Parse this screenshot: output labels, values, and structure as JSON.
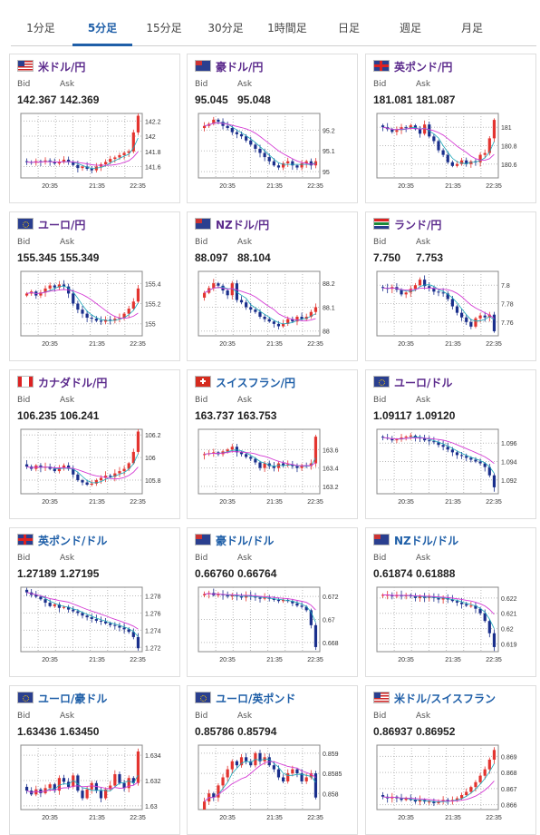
{
  "tabs": [
    {
      "label": "1分足"
    },
    {
      "label": "5分足",
      "active": true
    },
    {
      "label": "15分足"
    },
    {
      "label": "30分足"
    },
    {
      "label": "1時間足"
    },
    {
      "label": "日足"
    },
    {
      "label": "週足"
    },
    {
      "label": "月足"
    }
  ],
  "labels": {
    "bid": "Bid",
    "ask": "Ask"
  },
  "colors": {
    "up": "#e3342f",
    "down": "#1a2f8c",
    "ma": "#d43bd4",
    "tab_active": "#1f5fa8"
  },
  "cards": [
    {
      "pair": "米ドル/円",
      "title_color": "purple",
      "flag": "us-jp",
      "bid": "142.367",
      "ask": "142.369",
      "ticks": [
        "142.2",
        "142",
        "141.8",
        "141.6"
      ],
      "ymin": 141.45,
      "ymax": 142.3,
      "xticks": [
        "20:35",
        "21:35",
        "22:35"
      ],
      "close": [
        141.66,
        141.65,
        141.67,
        141.66,
        141.68,
        141.66,
        141.64,
        141.66,
        141.69,
        141.66,
        141.62,
        141.58,
        141.6,
        141.57,
        141.55,
        141.6,
        141.63,
        141.66,
        141.7,
        141.72,
        141.75,
        141.78,
        141.8,
        142.05,
        142.27
      ]
    },
    {
      "pair": "豪ドル/円",
      "title_color": "purple",
      "flag": "au-jp",
      "bid": "95.045",
      "ask": "95.048",
      "ticks": [
        "95.2",
        "95.1",
        "95"
      ],
      "ymin": 94.97,
      "ymax": 95.28,
      "xticks": [
        "20:35",
        "21:35",
        "22:35"
      ],
      "close": [
        95.22,
        95.23,
        95.25,
        95.24,
        95.22,
        95.21,
        95.19,
        95.18,
        95.17,
        95.15,
        95.13,
        95.11,
        95.09,
        95.07,
        95.05,
        95.03,
        95.02,
        95.04,
        95.05,
        95.03,
        95.02,
        95.04,
        95.05,
        95.03,
        95.05
      ]
    },
    {
      "pair": "英ポンド/円",
      "title_color": "purple",
      "flag": "gb-jp",
      "bid": "181.081",
      "ask": "181.087",
      "ticks": [
        "181",
        "180.8",
        "180.6"
      ],
      "ymin": 180.45,
      "ymax": 181.15,
      "xticks": [
        "20:35",
        "21:35",
        "22:35"
      ],
      "close": [
        181.0,
        180.98,
        180.95,
        180.97,
        181.0,
        180.99,
        181.02,
        180.98,
        180.93,
        181.03,
        180.9,
        180.85,
        180.75,
        180.7,
        180.62,
        180.58,
        180.6,
        180.64,
        180.6,
        180.63,
        180.62,
        180.7,
        180.72,
        180.88,
        181.08
      ]
    },
    {
      "pair": "ユーロ/円",
      "title_color": "purple",
      "flag": "eu-jp",
      "bid": "155.345",
      "ask": "155.349",
      "ticks": [
        "155.4",
        "155.2",
        "155"
      ],
      "ymin": 154.88,
      "ymax": 155.52,
      "xticks": [
        "20:35",
        "21:35",
        "22:35"
      ],
      "close": [
        155.3,
        155.32,
        155.28,
        155.31,
        155.35,
        155.38,
        155.36,
        155.39,
        155.37,
        155.3,
        155.2,
        155.14,
        155.1,
        155.06,
        155.05,
        155.03,
        155.02,
        155.04,
        155.03,
        155.05,
        155.06,
        155.1,
        155.15,
        155.22,
        155.35
      ]
    },
    {
      "pair": "NZドル/円",
      "title_color": "purple",
      "flag": "nz-jp",
      "bid": "88.097",
      "ask": "88.104",
      "ticks": [
        "88.2",
        "88.1",
        "88"
      ],
      "ymin": 87.98,
      "ymax": 88.25,
      "xticks": [
        "20:35",
        "21:35",
        "22:35"
      ],
      "close": [
        88.16,
        88.18,
        88.2,
        88.19,
        88.17,
        88.15,
        88.2,
        88.13,
        88.12,
        88.1,
        88.09,
        88.08,
        88.06,
        88.05,
        88.04,
        88.03,
        88.02,
        88.03,
        88.05,
        88.04,
        88.06,
        88.05,
        88.06,
        88.08,
        88.1
      ]
    },
    {
      "pair": "ランド/円",
      "title_color": "purple",
      "flag": "za-jp",
      "bid": "7.750",
      "ask": "7.753",
      "ticks": [
        "7.8",
        "7.78",
        "7.76"
      ],
      "ymin": 7.745,
      "ymax": 7.815,
      "xticks": [
        "20:35",
        "21:35",
        "22:35"
      ],
      "close": [
        7.797,
        7.796,
        7.798,
        7.795,
        7.79,
        7.792,
        7.796,
        7.8,
        7.806,
        7.799,
        7.797,
        7.793,
        7.792,
        7.791,
        7.785,
        7.777,
        7.77,
        7.765,
        7.76,
        7.755,
        7.764,
        7.767,
        7.765,
        7.768,
        7.75
      ]
    },
    {
      "pair": "カナダドル/円",
      "title_color": "purple",
      "flag": "ca-jp",
      "bid": "106.235",
      "ask": "106.241",
      "ticks": [
        "106.2",
        "106",
        "105.8"
      ],
      "ymin": 105.68,
      "ymax": 106.25,
      "xticks": [
        "20:35",
        "21:35",
        "22:35"
      ],
      "close": [
        105.92,
        105.9,
        105.93,
        105.91,
        105.92,
        105.9,
        105.88,
        105.91,
        105.93,
        105.9,
        105.85,
        105.8,
        105.78,
        105.76,
        105.77,
        105.8,
        105.82,
        105.84,
        105.83,
        105.86,
        105.88,
        105.9,
        105.95,
        106.05,
        106.23
      ]
    },
    {
      "pair": "スイスフラン/円",
      "title_color": "blue",
      "flag": "ch-jp",
      "bid": "163.737",
      "ask": "163.753",
      "ticks": [
        "163.6",
        "163.4",
        "163.2"
      ],
      "ymin": 163.12,
      "ymax": 163.82,
      "xticks": [
        "20:35",
        "21:35",
        "22:35"
      ],
      "close": [
        163.55,
        163.56,
        163.57,
        163.55,
        163.58,
        163.6,
        163.63,
        163.57,
        163.55,
        163.52,
        163.5,
        163.46,
        163.4,
        163.45,
        163.42,
        163.4,
        163.45,
        163.43,
        163.44,
        163.42,
        163.4,
        163.43,
        163.42,
        163.45,
        163.74
      ]
    },
    {
      "pair": "ユーロ/ドル",
      "title_color": "purple",
      "flag": "eu-us",
      "bid": "1.09117",
      "ask": "1.09120",
      "ticks": [
        "1.096",
        "1.094",
        "1.092"
      ],
      "ymin": 1.0905,
      "ymax": 1.0975,
      "xticks": [
        "20:35",
        "21:35",
        "22:35"
      ],
      "close": [
        1.0966,
        1.0965,
        1.0963,
        1.0964,
        1.0966,
        1.0967,
        1.0968,
        1.0966,
        1.0965,
        1.0963,
        1.0962,
        1.0961,
        1.0958,
        1.0956,
        1.0953,
        1.095,
        1.0947,
        1.0946,
        1.0944,
        1.0942,
        1.094,
        1.0938,
        1.0934,
        1.0925,
        1.0912
      ]
    },
    {
      "pair": "英ポンド/ドル",
      "title_color": "blue",
      "flag": "gb-us",
      "bid": "1.27189",
      "ask": "1.27195",
      "ticks": [
        "1.278",
        "1.276",
        "1.274",
        "1.272"
      ],
      "ymin": 1.2715,
      "ymax": 1.279,
      "xticks": [
        "20:35",
        "21:35",
        "22:35"
      ],
      "close": [
        1.2784,
        1.2781,
        1.2779,
        1.2776,
        1.2772,
        1.2768,
        1.277,
        1.2766,
        1.2767,
        1.2764,
        1.2762,
        1.276,
        1.2757,
        1.2755,
        1.2753,
        1.2751,
        1.275,
        1.2748,
        1.2746,
        1.2745,
        1.2743,
        1.2741,
        1.2738,
        1.2732,
        1.2719
      ]
    },
    {
      "pair": "豪ドル/ドル",
      "title_color": "blue",
      "flag": "au-us",
      "bid": "0.66760",
      "ask": "0.66764",
      "ticks": [
        "0.672",
        "0.67",
        "0.668"
      ],
      "ymin": 0.6672,
      "ymax": 0.6728,
      "xticks": [
        "20:35",
        "21:35",
        "22:35"
      ],
      "close": [
        0.6722,
        0.6723,
        0.6721,
        0.6722,
        0.6721,
        0.672,
        0.6721,
        0.672,
        0.6719,
        0.6721,
        0.672,
        0.6719,
        0.6718,
        0.6719,
        0.6718,
        0.6717,
        0.6716,
        0.6717,
        0.6716,
        0.6714,
        0.6712,
        0.6711,
        0.6708,
        0.6695,
        0.6676
      ]
    },
    {
      "pair": "NZドル/ドル",
      "title_color": "blue",
      "flag": "nz-us",
      "bid": "0.61874",
      "ask": "0.61888",
      "ticks": [
        "0.622",
        "0.621",
        "0.62",
        "0.619"
      ],
      "ymin": 0.6185,
      "ymax": 0.6227,
      "xticks": [
        "20:35",
        "21:35",
        "22:35"
      ],
      "close": [
        0.6222,
        0.6222,
        0.6221,
        0.6222,
        0.6221,
        0.6222,
        0.6221,
        0.622,
        0.6221,
        0.622,
        0.6221,
        0.622,
        0.6219,
        0.622,
        0.6219,
        0.6218,
        0.6217,
        0.6216,
        0.6215,
        0.6215,
        0.6213,
        0.621,
        0.6205,
        0.6197,
        0.6188
      ]
    },
    {
      "pair": "ユーロ/豪ドル",
      "title_color": "blue",
      "flag": "eu-au",
      "bid": "1.63436",
      "ask": "1.63450",
      "ticks": [
        "1.634",
        "1.632",
        "1.63"
      ],
      "ymin": 1.6297,
      "ymax": 1.6348,
      "xticks": [
        "20:35",
        "21:35",
        "22:35"
      ],
      "close": [
        1.6312,
        1.6309,
        1.6313,
        1.631,
        1.6314,
        1.6317,
        1.6312,
        1.6322,
        1.6319,
        1.6315,
        1.6324,
        1.6312,
        1.6306,
        1.6313,
        1.6318,
        1.6312,
        1.6306,
        1.6313,
        1.6316,
        1.6325,
        1.6318,
        1.6314,
        1.6322,
        1.6318,
        1.6343
      ]
    },
    {
      "pair": "ユーロ/英ポンド",
      "title_color": "blue",
      "flag": "eu-gb",
      "bid": "0.85786",
      "ask": "0.85794",
      "ticks": [
        "0.859",
        "0.8585",
        "0.858"
      ],
      "ymin": 0.8576,
      "ymax": 0.8592,
      "xticks": [
        "20:35",
        "21:35",
        "22:35"
      ],
      "close": [
        0.8578,
        0.858,
        0.8579,
        0.8582,
        0.8584,
        0.8586,
        0.8588,
        0.8587,
        0.8589,
        0.8588,
        0.8587,
        0.859,
        0.8588,
        0.8589,
        0.8587,
        0.8586,
        0.8584,
        0.8583,
        0.8585,
        0.8586,
        0.8585,
        0.8583,
        0.8584,
        0.8585,
        0.8579
      ]
    },
    {
      "pair": "米ドル/スイスフラン",
      "title_color": "blue",
      "flag": "us-ch",
      "bid": "0.86937",
      "ask": "0.86952",
      "ticks": [
        "0.869",
        "0.868",
        "0.867",
        "0.866"
      ],
      "ymin": 0.8657,
      "ymax": 0.8697,
      "xticks": [
        "20:35",
        "21:35",
        "22:35"
      ],
      "close": [
        0.8665,
        0.8664,
        0.8665,
        0.8664,
        0.8663,
        0.8664,
        0.8663,
        0.8662,
        0.8663,
        0.8662,
        0.8662,
        0.8661,
        0.8662,
        0.8663,
        0.8662,
        0.8663,
        0.8664,
        0.8666,
        0.8668,
        0.8671,
        0.8674,
        0.8678,
        0.8682,
        0.8688,
        0.8694
      ]
    }
  ]
}
